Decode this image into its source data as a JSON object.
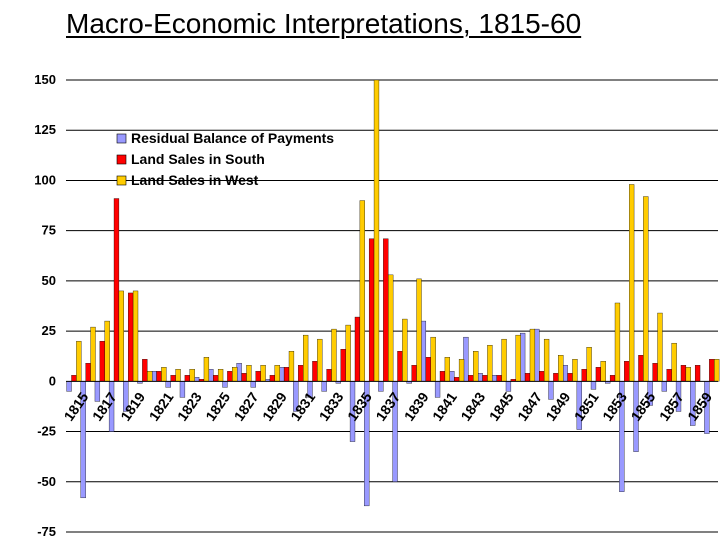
{
  "title": "Macro-Economic Interpretations, 1815-60",
  "chart_data": {
    "type": "bar",
    "title": "Macro-Economic Interpretations, 1815-60",
    "xlabel": "",
    "ylabel": "",
    "ylim": [
      -75,
      150
    ],
    "y_ticks": [
      -75,
      -50,
      -25,
      0,
      25,
      50,
      75,
      100,
      125,
      150
    ],
    "grid": "horizontal",
    "legend_position": "top-left",
    "categories": [
      "1815",
      "1816",
      "1817",
      "1818",
      "1819",
      "1820",
      "1821",
      "1822",
      "1823",
      "1824",
      "1825",
      "1826",
      "1827",
      "1828",
      "1829",
      "1830",
      "1831",
      "1832",
      "1833",
      "1834",
      "1835",
      "1836",
      "1837",
      "1838",
      "1839",
      "1840",
      "1841",
      "1842",
      "1843",
      "1844",
      "1845",
      "1846",
      "1847",
      "1848",
      "1849",
      "1850",
      "1851",
      "1852",
      "1853",
      "1854",
      "1855",
      "1856",
      "1857",
      "1858",
      "1859",
      "1860"
    ],
    "x_tick_labels": [
      "1815",
      "1817",
      "1819",
      "1821",
      "1823",
      "1825",
      "1827",
      "1829",
      "1831",
      "1833",
      "1835",
      "1837",
      "1839",
      "1841",
      "1843",
      "1845",
      "1847",
      "1849",
      "1851",
      "1853",
      "1855",
      "1857",
      "1859"
    ],
    "series": [
      {
        "name": "Residual Balance of Payments",
        "color": "#9999ff",
        "values": [
          -5,
          -58,
          -10,
          -25,
          -15,
          -1,
          5,
          -3,
          -8,
          2,
          6,
          -3,
          9,
          -3,
          1,
          7,
          -15,
          -8,
          -5,
          -1,
          -30,
          -62,
          -5,
          -50,
          -1,
          30,
          -8,
          5,
          22,
          4,
          3,
          -5,
          24,
          26,
          -9,
          8,
          -24,
          -4,
          -1,
          -55,
          -35,
          -12,
          -5,
          -15,
          -22,
          -26
        ]
      },
      {
        "name": "Land Sales in South",
        "color": "#ff0000",
        "values": [
          3,
          9,
          20,
          91,
          44,
          11,
          5,
          3,
          3,
          1,
          3,
          5,
          4,
          5,
          3,
          7,
          8,
          10,
          6,
          16,
          32,
          71,
          71,
          15,
          8,
          12,
          5,
          2,
          3,
          3,
          3,
          1,
          4,
          5,
          4,
          4,
          6,
          7,
          3,
          10,
          13,
          9,
          6,
          8,
          8,
          11
        ]
      },
      {
        "name": "Land Sales in West",
        "color": "#ffcc00",
        "values": [
          20,
          27,
          30,
          45,
          45,
          5,
          7,
          6,
          6,
          12,
          6,
          7,
          8,
          8,
          8,
          15,
          23,
          21,
          26,
          28,
          90,
          150,
          53,
          31,
          51,
          22,
          12,
          11,
          15,
          18,
          21,
          23,
          26,
          21,
          13,
          11,
          17,
          10,
          39,
          98,
          92,
          34,
          19,
          7,
          0,
          11
        ]
      }
    ]
  }
}
